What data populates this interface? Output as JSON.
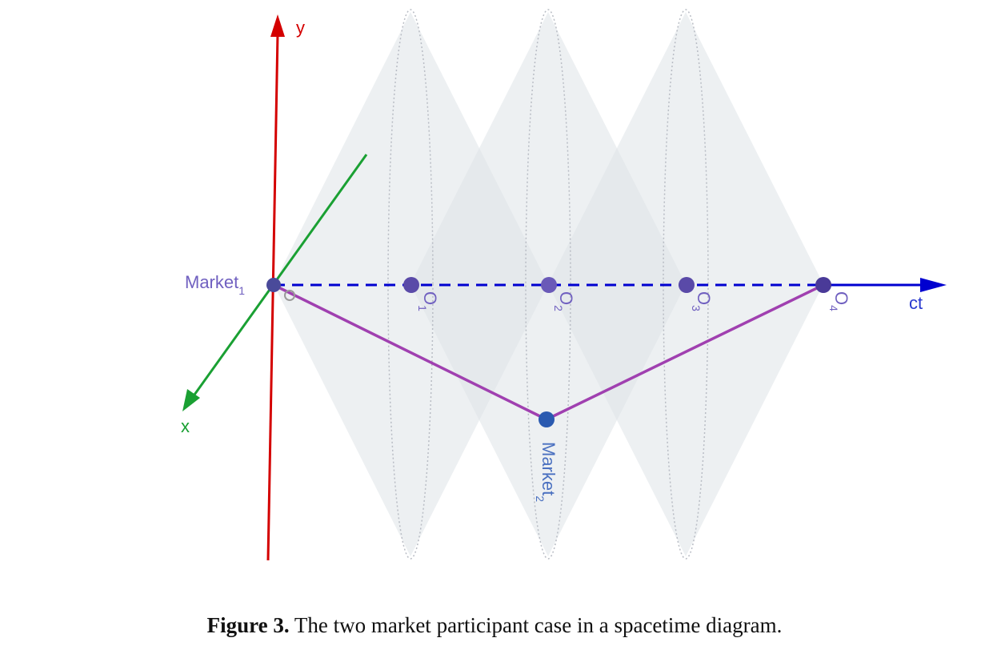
{
  "axes": {
    "y_label": "y",
    "x_label": "x",
    "ct_label": "ct"
  },
  "points": {
    "market1_label": "Market",
    "market1_sub": "1",
    "market2_label": "Market",
    "market2_sub": "2",
    "observers": [
      {
        "label": "O",
        "sub": "1"
      },
      {
        "label": "O",
        "sub": "2"
      },
      {
        "label": "O",
        "sub": "3"
      },
      {
        "label": "O",
        "sub": "4"
      }
    ]
  },
  "caption": {
    "figure_label": "Figure 3.",
    "text": "The two market participant case in a spacetime diagram."
  },
  "colors": {
    "y_axis": "#d40000",
    "x_axis": "#1aa033",
    "ct_axis": "#0000d0",
    "path": "#a040b0",
    "observer_point": "#5a4aa8",
    "label_purple": "#7060c0",
    "label_blue": "#4a70c0"
  }
}
